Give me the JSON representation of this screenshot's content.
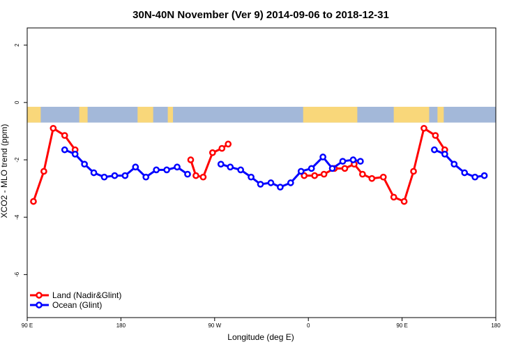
{
  "chart_data": {
    "type": "line",
    "title": "30N-40N November (Ver 9)   2014-09-06 to 2018-12-31",
    "xlabel": "Longitude (deg E)",
    "ylabel": "XCO2 - MLO trend (ppm)",
    "xlim": [
      90,
      540
    ],
    "ylim": [
      -7.5,
      2.6
    ],
    "x_ticks": [
      {
        "value": 90,
        "label": "90 E"
      },
      {
        "value": 180,
        "label": "180"
      },
      {
        "value": 270,
        "label": "90 W"
      },
      {
        "value": 360,
        "label": "0"
      },
      {
        "value": 450,
        "label": "90 E"
      },
      {
        "value": 540,
        "label": "180"
      }
    ],
    "y_ticks": [
      {
        "value": 2,
        "label": "2"
      },
      {
        "value": 0,
        "label": "0"
      },
      {
        "value": -2,
        "label": "-2"
      },
      {
        "value": -4,
        "label": "-4"
      },
      {
        "value": -6,
        "label": "-6"
      }
    ],
    "map_band_ylim": [
      -0.7,
      -0.15
    ],
    "map_band_colors": {
      "ocean": "#a3b8d9",
      "land": "#f9d77a"
    },
    "legend_position": "bottom-left",
    "series": [
      {
        "name": "Land (Nadir&Glint)",
        "color": "#ff0000",
        "segments": [
          [
            [
              96,
              -3.45
            ],
            [
              106,
              -2.4
            ],
            [
              115,
              -0.9
            ],
            [
              126,
              -1.15
            ],
            [
              136,
              -1.65
            ]
          ],
          [
            [
              247,
              -2.0
            ],
            [
              252,
              -2.55
            ],
            [
              259,
              -2.6
            ],
            [
              268,
              -1.75
            ],
            [
              277,
              -1.6
            ],
            [
              283,
              -1.45
            ]
          ],
          [
            [
              356,
              -2.55
            ],
            [
              366,
              -2.55
            ],
            [
              375,
              -2.5
            ],
            [
              385,
              -2.3
            ],
            [
              395,
              -2.3
            ],
            [
              404,
              -2.15
            ],
            [
              412,
              -2.5
            ],
            [
              421,
              -2.65
            ],
            [
              432,
              -2.6
            ],
            [
              442,
              -3.3
            ],
            [
              452,
              -3.45
            ],
            [
              461,
              -2.4
            ],
            [
              471,
              -0.9
            ],
            [
              482,
              -1.15
            ],
            [
              491,
              -1.65
            ]
          ]
        ]
      },
      {
        "name": "Ocean (Glint)",
        "color": "#0000ff",
        "segments": [
          [
            [
              126,
              -1.65
            ],
            [
              136,
              -1.8
            ],
            [
              145,
              -2.15
            ],
            [
              154,
              -2.45
            ],
            [
              164,
              -2.6
            ],
            [
              174,
              -2.55
            ],
            [
              184,
              -2.55
            ],
            [
              194,
              -2.25
            ],
            [
              204,
              -2.6
            ],
            [
              214,
              -2.35
            ],
            [
              224,
              -2.35
            ],
            [
              234,
              -2.25
            ],
            [
              244,
              -2.5
            ]
          ],
          [
            [
              276,
              -2.15
            ],
            [
              285,
              -2.25
            ],
            [
              295,
              -2.35
            ],
            [
              305,
              -2.6
            ],
            [
              314,
              -2.85
            ],
            [
              324,
              -2.8
            ],
            [
              333,
              -2.95
            ],
            [
              343,
              -2.8
            ],
            [
              353,
              -2.4
            ],
            [
              363,
              -2.3
            ],
            [
              374,
              -1.9
            ],
            [
              383,
              -2.3
            ],
            [
              393,
              -2.05
            ],
            [
              403,
              -2.0
            ],
            [
              410,
              -2.05
            ]
          ],
          [
            [
              481,
              -1.65
            ],
            [
              491,
              -1.8
            ],
            [
              500,
              -2.15
            ],
            [
              510,
              -2.45
            ],
            [
              520,
              -2.6
            ],
            [
              529,
              -2.55
            ]
          ]
        ]
      }
    ]
  }
}
